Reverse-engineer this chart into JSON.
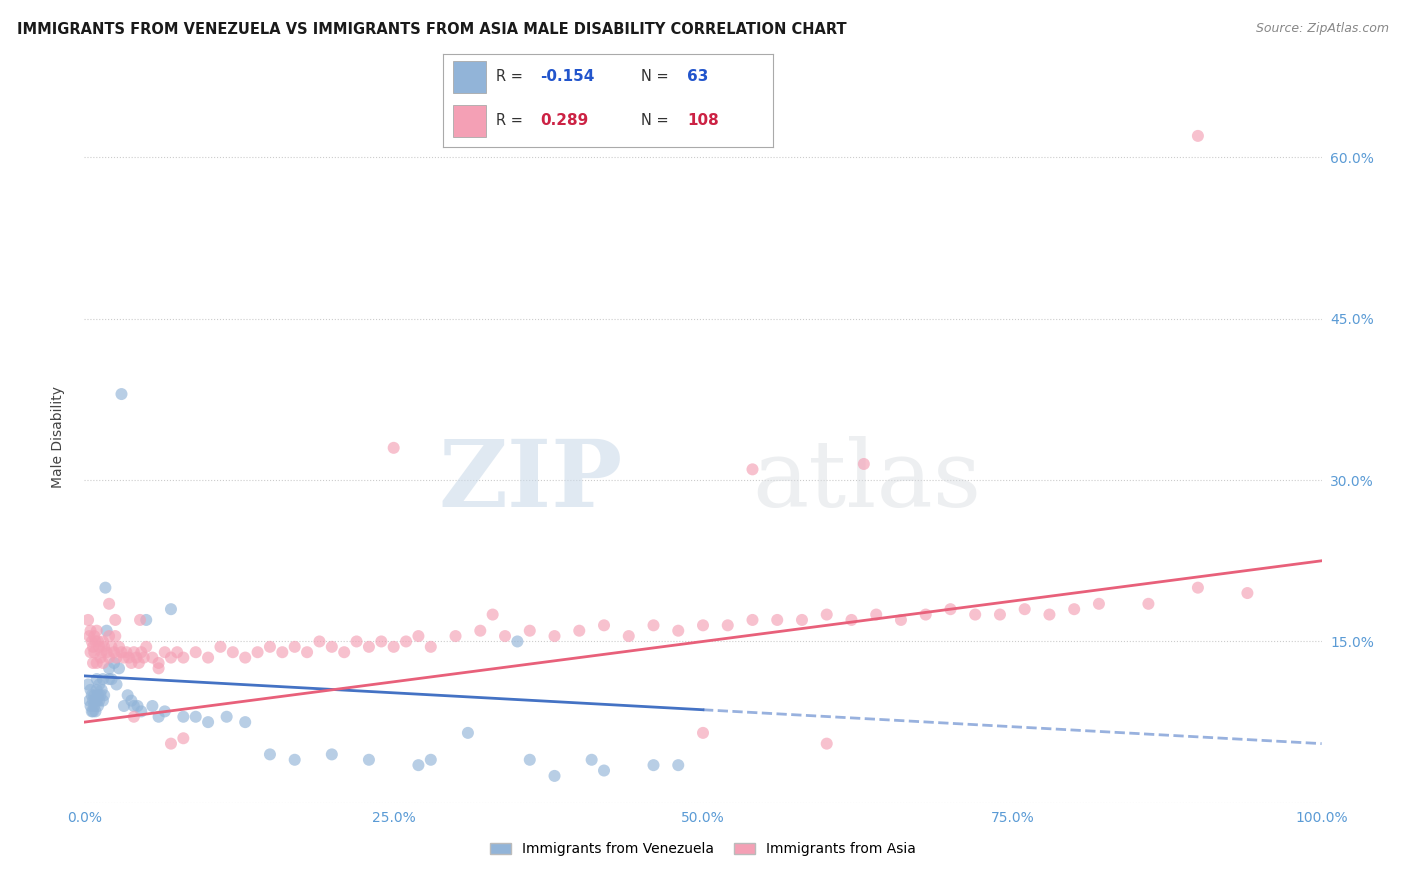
{
  "title": "IMMIGRANTS FROM VENEZUELA VS IMMIGRANTS FROM ASIA MALE DISABILITY CORRELATION CHART",
  "source": "Source: ZipAtlas.com",
  "ylabel": "Male Disability",
  "watermark_zip": "ZIP",
  "watermark_atlas": "atlas",
  "xlim": [
    0,
    1.0
  ],
  "ylim": [
    0.0,
    0.68
  ],
  "yticks": [
    0.0,
    0.15,
    0.3,
    0.45,
    0.6
  ],
  "xticks": [
    0.0,
    0.25,
    0.5,
    0.75,
    1.0
  ],
  "right_yticklabels": [
    "",
    "15.0%",
    "30.0%",
    "45.0%",
    "60.0%"
  ],
  "legend_R1": "-0.154",
  "legend_N1": "63",
  "legend_R2": "0.289",
  "legend_N2": "108",
  "color_venezuela": "#92b4d8",
  "color_asia": "#f4a0b5",
  "color_trendline_venezuela": "#4472c4",
  "color_trendline_asia": "#e8607a",
  "ven_trend_start_y": 0.118,
  "ven_trend_end_y": 0.055,
  "ven_trend_x_solid_end": 0.5,
  "asia_trend_start_y": 0.075,
  "asia_trend_end_y": 0.225,
  "venezuela_x": [
    0.003,
    0.004,
    0.005,
    0.005,
    0.006,
    0.006,
    0.007,
    0.007,
    0.008,
    0.008,
    0.009,
    0.009,
    0.01,
    0.01,
    0.01,
    0.011,
    0.011,
    0.012,
    0.012,
    0.013,
    0.014,
    0.015,
    0.015,
    0.016,
    0.017,
    0.018,
    0.02,
    0.02,
    0.022,
    0.024,
    0.026,
    0.028,
    0.03,
    0.032,
    0.035,
    0.038,
    0.04,
    0.043,
    0.046,
    0.05,
    0.055,
    0.06,
    0.065,
    0.07,
    0.08,
    0.09,
    0.1,
    0.115,
    0.13,
    0.15,
    0.17,
    0.2,
    0.23,
    0.27,
    0.31,
    0.36,
    0.41,
    0.46,
    0.38,
    0.42,
    0.48,
    0.35,
    0.28
  ],
  "venezuela_y": [
    0.11,
    0.095,
    0.105,
    0.09,
    0.1,
    0.085,
    0.095,
    0.085,
    0.1,
    0.09,
    0.095,
    0.085,
    0.115,
    0.105,
    0.095,
    0.1,
    0.09,
    0.11,
    0.095,
    0.1,
    0.105,
    0.115,
    0.095,
    0.1,
    0.2,
    0.16,
    0.125,
    0.115,
    0.115,
    0.13,
    0.11,
    0.125,
    0.38,
    0.09,
    0.1,
    0.095,
    0.09,
    0.09,
    0.085,
    0.17,
    0.09,
    0.08,
    0.085,
    0.18,
    0.08,
    0.08,
    0.075,
    0.08,
    0.075,
    0.045,
    0.04,
    0.045,
    0.04,
    0.035,
    0.065,
    0.04,
    0.04,
    0.035,
    0.025,
    0.03,
    0.035,
    0.15,
    0.04
  ],
  "asia_x": [
    0.003,
    0.004,
    0.005,
    0.005,
    0.006,
    0.007,
    0.007,
    0.008,
    0.008,
    0.009,
    0.01,
    0.01,
    0.011,
    0.012,
    0.013,
    0.014,
    0.015,
    0.015,
    0.016,
    0.018,
    0.02,
    0.02,
    0.022,
    0.024,
    0.025,
    0.026,
    0.028,
    0.03,
    0.032,
    0.034,
    0.036,
    0.038,
    0.04,
    0.042,
    0.044,
    0.046,
    0.048,
    0.05,
    0.055,
    0.06,
    0.065,
    0.07,
    0.075,
    0.08,
    0.09,
    0.1,
    0.11,
    0.12,
    0.13,
    0.14,
    0.15,
    0.16,
    0.17,
    0.18,
    0.19,
    0.2,
    0.21,
    0.22,
    0.23,
    0.24,
    0.25,
    0.26,
    0.27,
    0.28,
    0.3,
    0.32,
    0.34,
    0.36,
    0.38,
    0.4,
    0.42,
    0.44,
    0.46,
    0.48,
    0.5,
    0.52,
    0.54,
    0.56,
    0.58,
    0.6,
    0.62,
    0.64,
    0.66,
    0.68,
    0.7,
    0.72,
    0.74,
    0.76,
    0.78,
    0.8,
    0.82,
    0.86,
    0.9,
    0.94,
    0.5,
    0.6,
    0.25,
    0.33,
    0.63,
    0.02,
    0.025,
    0.04,
    0.045,
    0.06,
    0.07,
    0.08,
    0.9,
    0.54
  ],
  "asia_y": [
    0.17,
    0.155,
    0.16,
    0.14,
    0.15,
    0.145,
    0.13,
    0.155,
    0.14,
    0.15,
    0.16,
    0.13,
    0.15,
    0.145,
    0.135,
    0.14,
    0.15,
    0.13,
    0.145,
    0.14,
    0.155,
    0.135,
    0.145,
    0.14,
    0.155,
    0.135,
    0.145,
    0.14,
    0.135,
    0.14,
    0.135,
    0.13,
    0.14,
    0.135,
    0.13,
    0.14,
    0.135,
    0.145,
    0.135,
    0.13,
    0.14,
    0.135,
    0.14,
    0.135,
    0.14,
    0.135,
    0.145,
    0.14,
    0.135,
    0.14,
    0.145,
    0.14,
    0.145,
    0.14,
    0.15,
    0.145,
    0.14,
    0.15,
    0.145,
    0.15,
    0.145,
    0.15,
    0.155,
    0.145,
    0.155,
    0.16,
    0.155,
    0.16,
    0.155,
    0.16,
    0.165,
    0.155,
    0.165,
    0.16,
    0.165,
    0.165,
    0.17,
    0.17,
    0.17,
    0.175,
    0.17,
    0.175,
    0.17,
    0.175,
    0.18,
    0.175,
    0.175,
    0.18,
    0.175,
    0.18,
    0.185,
    0.185,
    0.2,
    0.195,
    0.065,
    0.055,
    0.33,
    0.175,
    0.315,
    0.185,
    0.17,
    0.08,
    0.17,
    0.125,
    0.055,
    0.06,
    0.62,
    0.31
  ]
}
